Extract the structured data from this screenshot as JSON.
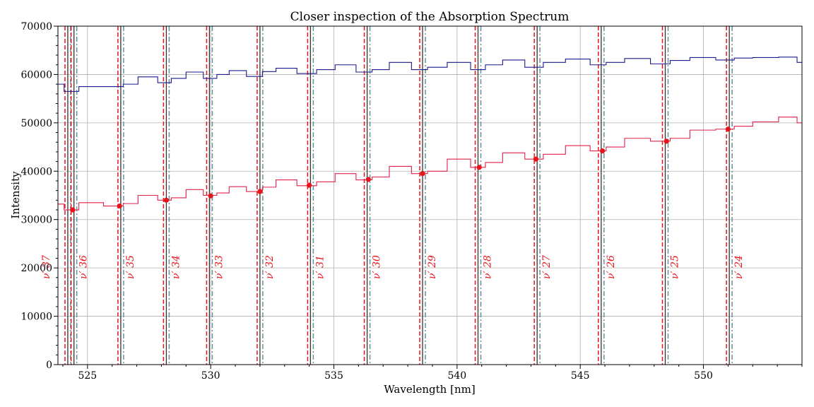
{
  "chart_data": {
    "type": "line",
    "title": "Closer inspection of the Absorption Spectrum",
    "xlabel": "Wavelength [nm]",
    "ylabel": "Intensity",
    "xlim": [
      523.8,
      554.0
    ],
    "ylim": [
      0,
      70000
    ],
    "xticks": [
      525,
      530,
      535,
      540,
      545,
      550
    ],
    "xtick_labels": [
      "525",
      "530",
      "535",
      "540",
      "545",
      "550"
    ],
    "yticks": [
      0,
      10000,
      20000,
      30000,
      40000,
      50000,
      60000,
      70000
    ],
    "ytick_labels": [
      "0",
      "10000",
      "20000",
      "30000",
      "40000",
      "50000",
      "60000",
      "70000"
    ],
    "grid": true,
    "colors": {
      "upper": "#1a1a8c",
      "lower": "#e0204a",
      "marker": "#e8141c",
      "dashed": "#e8141c",
      "dashdot": "#6b8f9a",
      "solid": "#333333"
    },
    "series": [
      {
        "x": [
          523.8,
          524.3,
          525.0,
          526.3,
          526.6,
          527.5,
          528.2,
          528.6,
          529.4,
          530.0,
          530.5,
          531.0,
          531.9,
          532.3,
          533.0,
          534.0,
          534.6,
          535.5,
          536.3,
          536.8,
          537.7,
          538.6,
          539.0,
          540.2,
          540.9,
          541.4,
          542.3,
          543.2,
          543.8,
          545.0,
          545.8,
          546.3,
          547.3,
          548.4,
          548.9,
          550.0,
          551.0,
          551.5,
          552.5,
          553.6,
          554.0
        ],
        "y": [
          58000,
          56500,
          57500,
          57500,
          58000,
          59500,
          58300,
          59200,
          60500,
          59200,
          60000,
          60800,
          59600,
          60600,
          61300,
          60200,
          61000,
          62000,
          60500,
          61000,
          62500,
          61000,
          61500,
          62500,
          61000,
          62000,
          63000,
          61500,
          62500,
          63200,
          62000,
          62500,
          63300,
          62200,
          62900,
          63500,
          63000,
          63400,
          63500,
          63600,
          62500
        ]
      },
      {
        "x": [
          523.8,
          524.3,
          525.0,
          526.3,
          526.6,
          527.5,
          528.2,
          528.6,
          529.4,
          530.0,
          530.5,
          531.0,
          531.9,
          532.3,
          533.0,
          534.0,
          534.6,
          535.5,
          536.3,
          536.8,
          537.7,
          538.6,
          539.0,
          540.2,
          540.9,
          541.4,
          542.3,
          543.2,
          543.8,
          545.0,
          545.8,
          546.3,
          547.3,
          548.4,
          548.9,
          550.0,
          551.0,
          551.5,
          552.5,
          553.6,
          554.0
        ],
        "y": [
          33200,
          32000,
          33500,
          32800,
          33300,
          35000,
          34000,
          34500,
          36200,
          35000,
          35500,
          36800,
          35800,
          36700,
          38200,
          37000,
          37800,
          39500,
          38200,
          38800,
          41000,
          39500,
          40000,
          42500,
          40800,
          41800,
          43800,
          42500,
          43500,
          45300,
          44200,
          45000,
          46800,
          46200,
          46800,
          48500,
          48700,
          49300,
          50200,
          51200,
          50000
        ]
      }
    ],
    "markers": {
      "x": [
        524.4,
        526.3,
        528.2,
        530.0,
        532.0,
        534.0,
        536.4,
        538.6,
        540.9,
        543.2,
        545.9,
        548.5,
        551.0
      ],
      "y": [
        32000,
        32800,
        34000,
        34900,
        35800,
        37100,
        38300,
        39500,
        40800,
        42500,
        44200,
        46200,
        48700
      ]
    },
    "line_groups": [
      {
        "label": "ν′ 37",
        "x": 524.2
      },
      {
        "label": "ν′ 36",
        "x": 524.45
      },
      {
        "label": "ν′ 35",
        "x": 526.35
      },
      {
        "label": "ν′ 34",
        "x": 528.2
      },
      {
        "label": "ν′ 33",
        "x": 529.95
      },
      {
        "label": "ν′ 32",
        "x": 532.0
      },
      {
        "label": "ν′ 31",
        "x": 534.05
      },
      {
        "label": "ν′ 30",
        "x": 536.35
      },
      {
        "label": "ν′ 29",
        "x": 538.6
      },
      {
        "label": "ν′ 28",
        "x": 540.85
      },
      {
        "label": "ν′ 27",
        "x": 543.25
      },
      {
        "label": "ν′ 26",
        "x": 545.85
      },
      {
        "label": "ν′ 25",
        "x": 548.45
      },
      {
        "label": "ν′ 24",
        "x": 551.05
      }
    ]
  }
}
